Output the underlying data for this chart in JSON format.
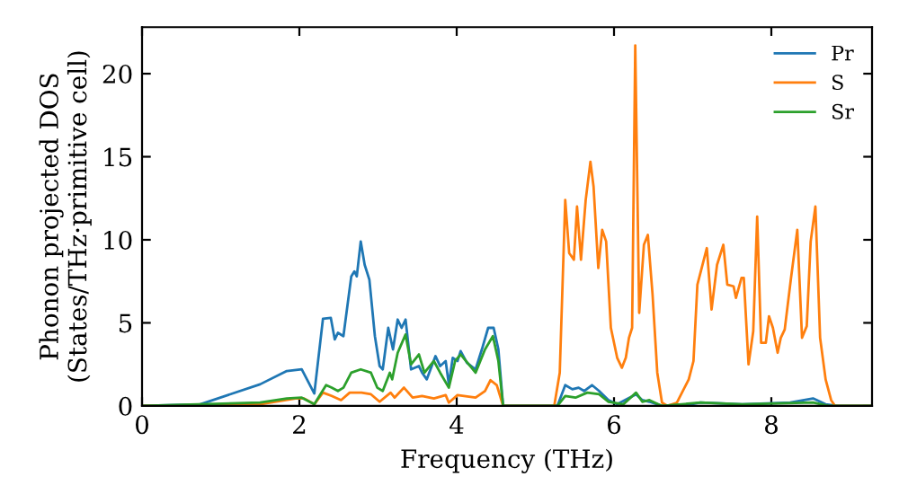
{
  "chart_data": {
    "type": "line",
    "xlabel": "Frequency (THz)",
    "ylabel": "Phonon projected DOS\n(States/THz·primitive cell)",
    "xlim": [
      0,
      9.28
    ],
    "ylim": [
      0,
      22.8
    ],
    "xticks": [
      0,
      2,
      4,
      6,
      8
    ],
    "yticks": [
      0,
      5,
      10,
      15,
      20
    ],
    "legend": "top right",
    "grid": false,
    "series": [
      {
        "name": "Pr",
        "color": "#1f77b4",
        "x": [
          0,
          0.74,
          1.5,
          1.84,
          2.03,
          2.19,
          2.3,
          2.4,
          2.45,
          2.49,
          2.56,
          2.66,
          2.7,
          2.73,
          2.78,
          2.83,
          2.89,
          2.96,
          3.02,
          3.06,
          3.13,
          3.19,
          3.25,
          3.3,
          3.35,
          3.42,
          3.52,
          3.56,
          3.62,
          3.73,
          3.79,
          3.86,
          3.9,
          3.95,
          4.01,
          4.05,
          4.13,
          4.24,
          4.32,
          4.4,
          4.47,
          4.53,
          4.59,
          5.28,
          5.38,
          5.47,
          5.55,
          5.62,
          5.72,
          5.81,
          5.93,
          6.04,
          6.28,
          6.36,
          6.45,
          6.61,
          6.87,
          7.1,
          7.63,
          8.24,
          8.53,
          8.69,
          8.84,
          9.28
        ],
        "values": [
          0,
          0.1,
          1.3,
          2.1,
          2.2,
          0.75,
          5.25,
          5.3,
          4.0,
          4.4,
          4.2,
          7.8,
          8.1,
          7.8,
          9.9,
          8.5,
          7.6,
          4.2,
          2.4,
          2.2,
          4.7,
          3.4,
          5.2,
          4.7,
          5.2,
          2.2,
          2.4,
          2.0,
          1.6,
          3.0,
          2.4,
          2.7,
          1.3,
          2.9,
          2.7,
          3.3,
          2.6,
          2.2,
          3.4,
          4.7,
          4.7,
          3.4,
          0,
          0,
          1.25,
          1.0,
          1.1,
          0.9,
          1.25,
          0.9,
          0.35,
          0.1,
          0.7,
          0.35,
          0.25,
          0,
          0,
          0.2,
          0.1,
          0.2,
          0.45,
          0.1,
          0,
          0
        ]
      },
      {
        "name": "S",
        "color": "#ff7f0e",
        "x": [
          0,
          1.5,
          1.95,
          2.06,
          2.19,
          2.3,
          2.41,
          2.53,
          2.64,
          2.79,
          2.91,
          3.02,
          3.16,
          3.21,
          3.33,
          3.44,
          3.56,
          3.71,
          3.86,
          3.9,
          4.01,
          4.24,
          4.36,
          4.43,
          4.51,
          4.59,
          5.24,
          5.31,
          5.38,
          5.43,
          5.49,
          5.53,
          5.58,
          5.64,
          5.7,
          5.74,
          5.8,
          5.85,
          5.9,
          5.96,
          6.04,
          6.1,
          6.15,
          6.19,
          6.23,
          6.27,
          6.32,
          6.38,
          6.43,
          6.49,
          6.55,
          6.61,
          6.68,
          6.8,
          6.95,
          7.01,
          7.06,
          7.18,
          7.24,
          7.31,
          7.39,
          7.44,
          7.52,
          7.55,
          7.62,
          7.65,
          7.71,
          7.77,
          7.82,
          7.87,
          7.93,
          7.97,
          8.02,
          8.08,
          8.12,
          8.17,
          8.25,
          8.33,
          8.39,
          8.45,
          8.5,
          8.56,
          8.62,
          8.69,
          8.76,
          8.81,
          9.28
        ],
        "values": [
          0,
          0.1,
          0.45,
          0.45,
          0.1,
          0.8,
          0.6,
          0.35,
          0.8,
          0.8,
          0.7,
          0.25,
          0.8,
          0.5,
          1.1,
          0.5,
          0.6,
          0.45,
          0.65,
          0.2,
          0.65,
          0.5,
          0.9,
          1.55,
          1.25,
          0,
          0,
          2.0,
          12.4,
          9.2,
          8.8,
          12.0,
          8.8,
          12.4,
          14.7,
          13.2,
          8.3,
          10.6,
          9.9,
          4.7,
          2.9,
          2.3,
          2.9,
          4.1,
          4.7,
          21.7,
          5.6,
          9.7,
          10.3,
          6.7,
          2.0,
          0.2,
          0,
          0.2,
          1.6,
          2.7,
          7.3,
          9.5,
          5.8,
          8.5,
          9.7,
          7.3,
          7.2,
          6.5,
          7.7,
          7.7,
          2.5,
          4.5,
          11.4,
          3.8,
          3.8,
          5.4,
          4.7,
          3.2,
          4.1,
          4.6,
          7.7,
          10.6,
          4.1,
          4.8,
          9.9,
          12.0,
          4.1,
          1.6,
          0.35,
          0,
          0
        ]
      },
      {
        "name": "Sr",
        "color": "#2ca02c",
        "x": [
          0,
          1.5,
          1.84,
          2.03,
          2.19,
          2.34,
          2.41,
          2.49,
          2.56,
          2.66,
          2.78,
          2.91,
          2.99,
          3.06,
          3.15,
          3.18,
          3.25,
          3.35,
          3.42,
          3.52,
          3.59,
          3.71,
          3.79,
          3.9,
          3.98,
          4.05,
          4.24,
          4.36,
          4.46,
          4.53,
          4.59,
          5.28,
          5.38,
          5.51,
          5.66,
          5.81,
          5.93,
          6.12,
          6.28,
          6.36,
          6.45,
          6.61,
          7.1,
          7.63,
          8.53,
          8.73,
          9.28
        ],
        "values": [
          0,
          0.2,
          0.45,
          0.5,
          0.1,
          1.25,
          1.1,
          0.9,
          1.1,
          2.0,
          2.2,
          2.0,
          1.1,
          0.9,
          2.0,
          1.6,
          3.2,
          4.3,
          2.5,
          3.1,
          2.0,
          2.7,
          2.0,
          1.1,
          2.7,
          3.1,
          2.0,
          3.4,
          4.2,
          2.7,
          0,
          0,
          0.6,
          0.5,
          0.8,
          0.7,
          0.25,
          0.1,
          0.8,
          0.25,
          0.35,
          0,
          0.2,
          0.1,
          0.2,
          0,
          0
        ]
      }
    ]
  }
}
